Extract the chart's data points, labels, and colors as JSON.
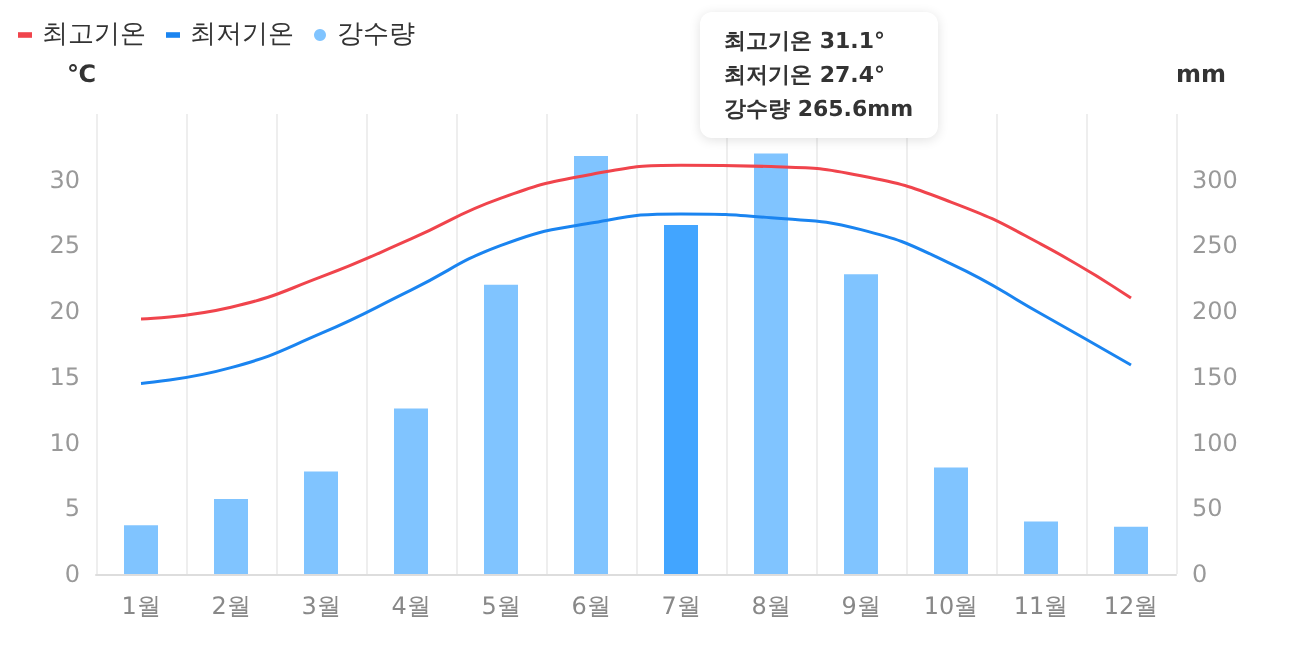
{
  "chart_data": {
    "type": "bar",
    "categories": [
      "1월",
      "2월",
      "3월",
      "4월",
      "5월",
      "6월",
      "7월",
      "8월",
      "9월",
      "10월",
      "11월",
      "12월"
    ],
    "series": [
      {
        "name": "최고기온",
        "type": "line",
        "color": "#f0444c",
        "values": [
          19.4,
          20.3,
          22.6,
          25.5,
          28.6,
          30.4,
          31.1,
          31.0,
          30.3,
          28.3,
          25.1,
          21.0
        ]
      },
      {
        "name": "최저기온",
        "type": "line",
        "color": "#1a84f0",
        "values": [
          14.5,
          15.7,
          18.3,
          21.6,
          25.0,
          26.7,
          27.4,
          27.1,
          26.2,
          23.6,
          19.8,
          15.9
        ]
      },
      {
        "name": "강수량",
        "axis": "y2",
        "color": "#80c4ff",
        "colors": [
          "#80c4ff",
          "#80c4ff",
          "#80c4ff",
          "#80c4ff",
          "#80c4ff",
          "#80c4ff",
          "#42a5ff",
          "#80c4ff",
          "#80c4ff",
          "#80c4ff",
          "#80c4ff",
          "#80c4ff"
        ],
        "values": [
          37,
          57,
          78,
          126,
          220,
          318,
          265.6,
          320,
          228,
          81,
          40,
          36
        ]
      }
    ],
    "ylabel": "℃",
    "y2label": "mm",
    "ylim": [
      0,
      35
    ],
    "yticks": [
      0,
      5,
      10,
      15,
      20,
      25,
      30
    ],
    "y2lim": [
      0,
      350
    ],
    "y2ticks": [
      0,
      50,
      100,
      150,
      200,
      250,
      300
    ],
    "annotations": [
      "최고기온 31.1°",
      "최저기온 27.4°",
      "강수량 265.6mm"
    ],
    "grid": "x",
    "legend": "top left",
    "marker": "none",
    "line_style": "solid"
  }
}
